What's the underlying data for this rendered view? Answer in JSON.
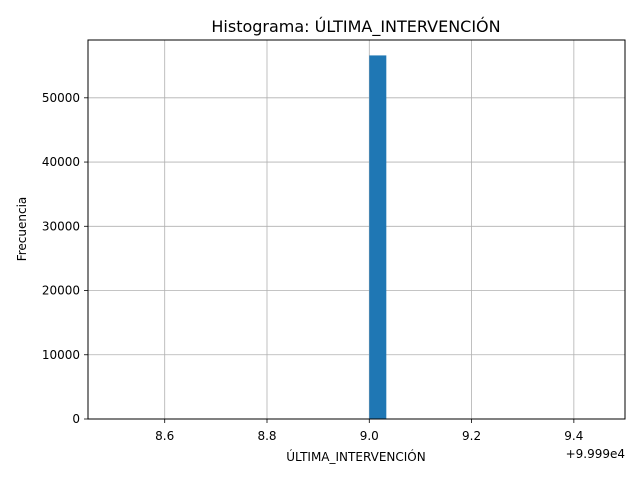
{
  "chart_data": {
    "type": "bar",
    "title": "Histograma: ÚLTIMA_INTERVENCIÓN",
    "xlabel": "ÚLTIMA_INTERVENCIÓN",
    "ylabel": "Frecuencia",
    "x_offset_label": "+9.999e4",
    "xlim": [
      8.45,
      9.5
    ],
    "ylim": [
      0,
      59000
    ],
    "x_ticks": [
      8.6,
      8.8,
      9.0,
      9.2,
      9.4
    ],
    "x_tick_labels": [
      "8.6",
      "8.8",
      "9.0",
      "9.2",
      "9.4"
    ],
    "y_ticks": [
      0,
      10000,
      20000,
      30000,
      40000,
      50000
    ],
    "y_tick_labels": [
      "0",
      "10000",
      "20000",
      "30000",
      "40000",
      "50000"
    ],
    "bins": [
      {
        "x_start": 9.0,
        "x_end": 9.0333,
        "count": 56600
      }
    ],
    "grid": true,
    "bar_color": "#1f77b4"
  }
}
